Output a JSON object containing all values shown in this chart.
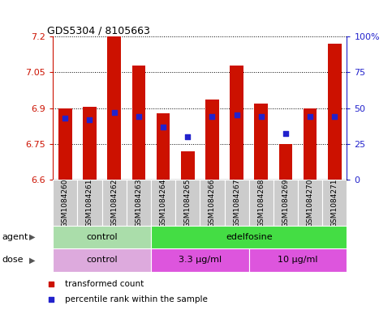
{
  "title": "GDS5304 / 8105663",
  "samples": [
    "GSM1084260",
    "GSM1084261",
    "GSM1084262",
    "GSM1084263",
    "GSM1084264",
    "GSM1084265",
    "GSM1084266",
    "GSM1084267",
    "GSM1084268",
    "GSM1084269",
    "GSM1084270",
    "GSM1084271"
  ],
  "bar_values": [
    6.9,
    6.905,
    7.2,
    7.08,
    6.88,
    6.72,
    6.935,
    7.08,
    6.92,
    6.75,
    6.9,
    7.17
  ],
  "percentile_values": [
    43,
    42,
    47,
    44,
    37,
    30,
    44,
    45,
    44,
    32,
    44,
    44
  ],
  "bar_bottom": 6.6,
  "ylim_left": [
    6.6,
    7.2
  ],
  "ylim_right": [
    0,
    100
  ],
  "yticks_left": [
    6.6,
    6.75,
    6.9,
    7.05,
    7.2
  ],
  "yticks_right": [
    0,
    25,
    50,
    75,
    100
  ],
  "ytick_labels_left": [
    "6.6",
    "6.75",
    "6.9",
    "7.05",
    "7.2"
  ],
  "ytick_labels_right": [
    "0",
    "25",
    "50",
    "75",
    "100%"
  ],
  "bar_color": "#cc1100",
  "dot_color": "#2222cc",
  "grid_color": "#000000",
  "agent_groups": [
    {
      "label": "control",
      "color": "#aaddaa",
      "start": 0,
      "end": 4
    },
    {
      "label": "edelfosine",
      "color": "#44dd44",
      "start": 4,
      "end": 12
    }
  ],
  "dose_groups": [
    {
      "label": "control",
      "color": "#ddaadd",
      "start": 0,
      "end": 4
    },
    {
      "label": "3.3 μg/ml",
      "color": "#dd55dd",
      "start": 4,
      "end": 8
    },
    {
      "label": "10 μg/ml",
      "color": "#dd55dd",
      "start": 8,
      "end": 12
    }
  ],
  "legend_items": [
    {
      "label": "transformed count",
      "color": "#cc1100"
    },
    {
      "label": "percentile rank within the sample",
      "color": "#2222cc"
    }
  ],
  "agent_label": "agent",
  "dose_label": "dose",
  "left_color": "#cc1100",
  "right_color": "#2222cc",
  "bar_width": 0.55
}
